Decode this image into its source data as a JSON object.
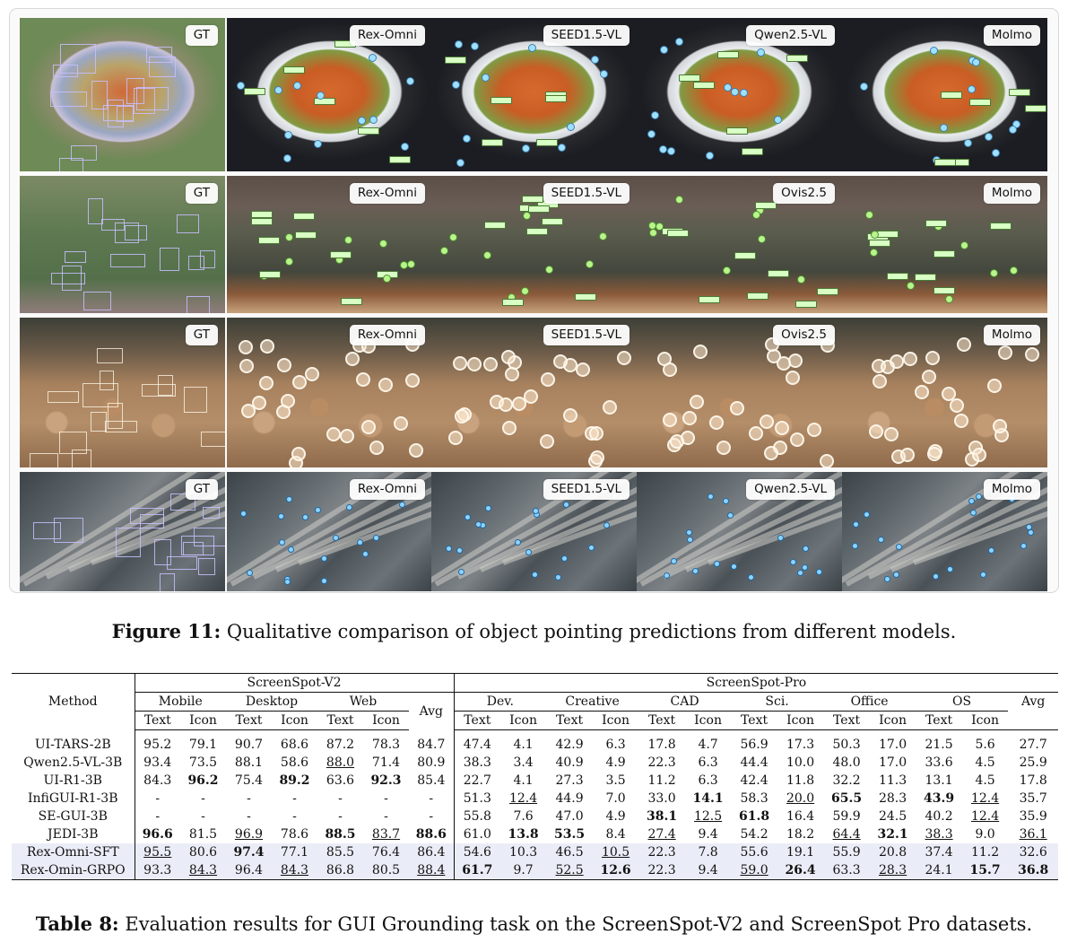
{
  "figure": {
    "rows": [
      [
        "GT",
        "Rex-Omni",
        "SEED1.5-VL",
        "Qwen2.5-VL",
        "Molmo"
      ],
      [
        "GT",
        "Rex-Omni",
        "SEED1.5-VL",
        "Ovis2.5",
        "Molmo"
      ],
      [
        "GT",
        "Rex-Omni",
        "SEED1.5-VL",
        "Ovis2.5",
        "Molmo"
      ],
      [
        "GT",
        "Rex-Omni",
        "SEED1.5-VL",
        "Qwen2.5-VL",
        "Molmo"
      ]
    ],
    "caption_label": "Figure 11:",
    "caption_text": " Qualitative comparison of object pointing predictions from different models."
  },
  "table": {
    "method_header": "Method",
    "group_v2": "ScreenSpot-V2",
    "group_pro": "ScreenSpot-Pro",
    "v2_subgroups": [
      "Mobile",
      "Desktop",
      "Web"
    ],
    "pro_subgroups": [
      "Dev.",
      "Creative",
      "CAD",
      "Sci.",
      "Office",
      "OS"
    ],
    "avg_label": "Avg",
    "text_label": "Text",
    "icon_label": "Icon",
    "rows": [
      {
        "method": "UI-TARS-2B",
        "cells": [
          "95.2",
          "79.1",
          "90.7",
          "68.6",
          "87.2",
          "78.3",
          "84.7",
          "47.4",
          "4.1",
          "42.9",
          "6.3",
          "17.8",
          "4.7",
          "56.9",
          "17.3",
          "50.3",
          "17.0",
          "21.5",
          "5.6",
          "27.7"
        ],
        "bold": [],
        "under": []
      },
      {
        "method": "Qwen2.5-VL-3B",
        "cells": [
          "93.4",
          "73.5",
          "88.1",
          "58.6",
          "88.0",
          "71.4",
          "80.9",
          "38.3",
          "3.4",
          "40.9",
          "4.9",
          "22.3",
          "6.3",
          "44.4",
          "10.0",
          "48.0",
          "17.0",
          "33.6",
          "4.5",
          "25.9"
        ],
        "bold": [],
        "under": [
          4
        ]
      },
      {
        "method": "UI-R1-3B",
        "cells": [
          "84.3",
          "96.2",
          "75.4",
          "89.2",
          "63.6",
          "92.3",
          "85.4",
          "22.7",
          "4.1",
          "27.3",
          "3.5",
          "11.2",
          "6.3",
          "42.4",
          "11.8",
          "32.2",
          "11.3",
          "13.1",
          "4.5",
          "17.8"
        ],
        "bold": [
          1,
          3,
          5
        ],
        "under": []
      },
      {
        "method": "InfiGUI-R1-3B",
        "cells": [
          "-",
          "-",
          "-",
          "-",
          "-",
          "-",
          "-",
          "51.3",
          "12.4",
          "44.9",
          "7.0",
          "33.0",
          "14.1",
          "58.3",
          "20.0",
          "65.5",
          "28.3",
          "43.9",
          "12.4",
          "35.7"
        ],
        "bold": [
          12,
          15,
          17
        ],
        "under": [
          8,
          14,
          18
        ]
      },
      {
        "method": "SE-GUI-3B",
        "cells": [
          "-",
          "-",
          "-",
          "-",
          "-",
          "-",
          "-",
          "55.8",
          "7.6",
          "47.0",
          "4.9",
          "38.1",
          "12.5",
          "61.8",
          "16.4",
          "59.9",
          "24.5",
          "40.2",
          "12.4",
          "35.9"
        ],
        "bold": [
          11,
          13
        ],
        "under": [
          12,
          18
        ]
      },
      {
        "method": "JEDI-3B",
        "cells": [
          "96.6",
          "81.5",
          "96.9",
          "78.6",
          "88.5",
          "83.7",
          "88.6",
          "61.0",
          "13.8",
          "53.5",
          "8.4",
          "27.4",
          "9.4",
          "54.2",
          "18.2",
          "64.4",
          "32.1",
          "38.3",
          "9.0",
          "36.1"
        ],
        "bold": [
          0,
          4,
          6,
          8,
          9,
          16
        ],
        "under": [
          2,
          5,
          11,
          15,
          17,
          19
        ]
      },
      {
        "method": "Rex-Omni-SFT",
        "cells": [
          "95.5",
          "80.6",
          "97.4",
          "77.1",
          "85.5",
          "76.4",
          "86.4",
          "54.6",
          "10.3",
          "46.5",
          "10.5",
          "22.3",
          "7.8",
          "55.6",
          "19.1",
          "55.9",
          "20.8",
          "37.4",
          "11.2",
          "32.6"
        ],
        "bold": [
          2
        ],
        "under": [
          0,
          10
        ],
        "highlight": true
      },
      {
        "method": "Rex-Omin-GRPO",
        "cells": [
          "93.3",
          "84.3",
          "96.4",
          "84.3",
          "86.8",
          "80.5",
          "88.4",
          "61.7",
          "9.7",
          "52.5",
          "12.6",
          "22.3",
          "9.4",
          "59.0",
          "26.4",
          "63.3",
          "28.3",
          "24.1",
          "15.7",
          "36.8"
        ],
        "bold": [
          7,
          10,
          14,
          18,
          19
        ],
        "under": [
          1,
          3,
          6,
          9,
          13,
          16
        ],
        "highlight": true
      }
    ],
    "caption_label": "Table 8:",
    "caption_text": " Evaluation results for GUI Grounding task on the ScreenSpot-V2 and ScreenSpot Pro datasets."
  }
}
